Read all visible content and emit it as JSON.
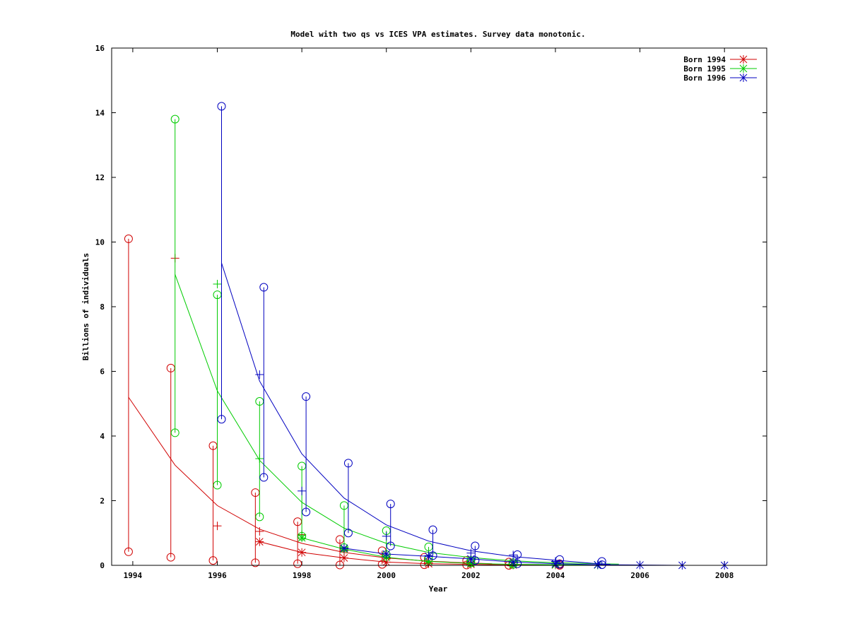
{
  "chart_data": {
    "type": "line",
    "title": "Model with two qs vs ICES VPA estimates. Survey data monotonic.",
    "xlabel": "Year",
    "ylabel": "Billions of individuals",
    "xlim": [
      1993.5,
      2009
    ],
    "ylim": [
      0,
      16
    ],
    "x_ticks": [
      "1994",
      "1996",
      "1998",
      "2000",
      "2002",
      "2004",
      "2006",
      "2008"
    ],
    "y_ticks": [
      "0",
      "2",
      "4",
      "6",
      "8",
      "10",
      "12",
      "14",
      "16"
    ],
    "legend_position": "top-right",
    "series": [
      {
        "name": "Born 1994",
        "color": "#d00000",
        "model_curve": {
          "x": [
            1993.9,
            1995,
            1996,
            1997,
            1998,
            1999,
            2000,
            2001,
            2002,
            2002.5
          ],
          "y": [
            5.2,
            3.1,
            1.85,
            1.12,
            0.68,
            0.4,
            0.23,
            0.13,
            0.07,
            0.05
          ]
        },
        "vpa_line": {
          "x": [
            1997,
            1998,
            1999,
            2000,
            2001,
            2002,
            2003,
            2004
          ],
          "y": [
            0.73,
            0.4,
            0.23,
            0.1,
            0.05,
            0.03,
            0.01,
            0.01
          ]
        },
        "survey_ranges": [
          {
            "x": 1993.9,
            "low": 0.42,
            "high": 10.1
          },
          {
            "x": 1994.9,
            "low": 0.25,
            "high": 6.1
          },
          {
            "x": 1995.9,
            "low": 0.15,
            "high": 3.7
          },
          {
            "x": 1996.9,
            "low": 0.08,
            "high": 2.25
          },
          {
            "x": 1997.9,
            "low": 0.05,
            "high": 1.35
          },
          {
            "x": 1998.9,
            "low": 0.01,
            "high": 0.8
          },
          {
            "x": 1999.9,
            "low": 0.03,
            "high": 0.45
          },
          {
            "x": 2000.9,
            "low": 0.02,
            "high": 0.25
          },
          {
            "x": 2001.9,
            "low": 0.01,
            "high": 0.15
          },
          {
            "x": 2002.9,
            "low": 0.0,
            "high": 0.1
          },
          {
            "x": 2004.1,
            "low": 0.0,
            "high": 0.05
          }
        ],
        "plus_points": [
          {
            "x": 1995,
            "y": 9.5
          },
          {
            "x": 1996,
            "y": 1.22
          },
          {
            "x": 1997,
            "y": 1.05
          },
          {
            "x": 1998,
            "y": 0.95
          },
          {
            "x": 1999,
            "y": 0.45
          },
          {
            "x": 2000,
            "y": 0.2
          },
          {
            "x": 2001,
            "y": 0.08
          },
          {
            "x": 2002,
            "y": 0.04
          }
        ]
      },
      {
        "name": "Born 1995",
        "color": "#00cc00",
        "model_curve": {
          "x": [
            1995,
            1996,
            1997,
            1998,
            1999,
            2000,
            2001,
            2002,
            2003,
            2004,
            2005,
            2005.5
          ],
          "y": [
            9.0,
            5.4,
            3.25,
            1.95,
            1.15,
            0.68,
            0.4,
            0.24,
            0.14,
            0.08,
            0.05,
            0.04
          ]
        },
        "vpa_line": {
          "x": [
            1998,
            1999,
            2000,
            2001,
            2002,
            2003,
            2004,
            2005
          ],
          "y": [
            0.85,
            0.5,
            0.25,
            0.12,
            0.06,
            0.03,
            0.02,
            0.01
          ]
        },
        "survey_ranges": [
          {
            "x": 1995,
            "low": 4.1,
            "high": 13.8
          },
          {
            "x": 1996,
            "low": 2.48,
            "high": 8.37
          },
          {
            "x": 1997,
            "low": 1.5,
            "high": 5.07
          },
          {
            "x": 1998,
            "low": 0.9,
            "high": 3.07
          },
          {
            "x": 1999,
            "low": 0.55,
            "high": 1.85
          },
          {
            "x": 2000,
            "low": 0.33,
            "high": 1.07
          },
          {
            "x": 2001,
            "low": 0.2,
            "high": 0.57
          },
          {
            "x": 2002,
            "low": 0.08,
            "high": 0.15
          },
          {
            "x": 2003,
            "low": 0.03,
            "high": 0.08
          }
        ],
        "plus_points": [
          {
            "x": 1996,
            "y": 8.7
          },
          {
            "x": 1997,
            "y": 3.3
          },
          {
            "x": 1998,
            "y": 0.92
          },
          {
            "x": 1999,
            "y": 0.55
          },
          {
            "x": 2000,
            "y": 0.3
          },
          {
            "x": 2001,
            "y": 0.12
          }
        ]
      },
      {
        "name": "Born 1996",
        "color": "#0000c0",
        "model_curve": {
          "x": [
            1996.1,
            1997,
            1998,
            1999,
            2000,
            2001,
            2002,
            2003,
            2004,
            2005,
            2005.3
          ],
          "y": [
            9.35,
            5.7,
            3.45,
            2.08,
            1.25,
            0.75,
            0.45,
            0.27,
            0.16,
            0.05,
            0.03
          ]
        },
        "vpa_line": {
          "x": [
            1999,
            2000,
            2001,
            2002,
            2003,
            2004,
            2005,
            2006,
            2007,
            2008
          ],
          "y": [
            0.53,
            0.35,
            0.28,
            0.2,
            0.1,
            0.05,
            0.02,
            0.01,
            0.0,
            0.0
          ]
        },
        "survey_ranges": [
          {
            "x": 1996.1,
            "low": 4.52,
            "high": 14.2
          },
          {
            "x": 1997.1,
            "low": 2.72,
            "high": 8.6
          },
          {
            "x": 1998.1,
            "low": 1.65,
            "high": 5.22
          },
          {
            "x": 1999.1,
            "low": 1.0,
            "high": 3.16
          },
          {
            "x": 2000.1,
            "low": 0.6,
            "high": 1.9
          },
          {
            "x": 2001.1,
            "low": 0.3,
            "high": 1.1
          },
          {
            "x": 2002.1,
            "low": 0.15,
            "high": 0.6
          },
          {
            "x": 2003.1,
            "low": 0.05,
            "high": 0.33
          },
          {
            "x": 2004.1,
            "low": 0.03,
            "high": 0.18
          },
          {
            "x": 2005.1,
            "low": 0.02,
            "high": 0.12
          }
        ],
        "plus_points": [
          {
            "x": 1997,
            "y": 5.9
          },
          {
            "x": 1998,
            "y": 2.3
          },
          {
            "x": 2000,
            "y": 0.9
          },
          {
            "x": 2001,
            "y": 0.3
          },
          {
            "x": 2002,
            "y": 0.38
          },
          {
            "x": 2003,
            "y": 0.32
          },
          {
            "x": 2004,
            "y": 0.12
          }
        ]
      }
    ]
  }
}
